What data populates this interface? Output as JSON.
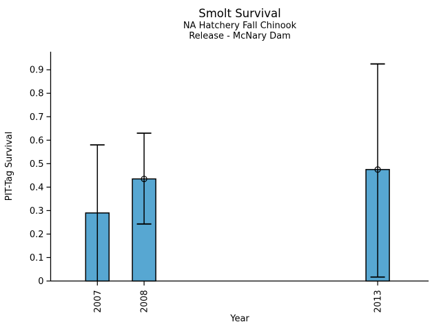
{
  "chart_data": {
    "type": "bar",
    "title": "Smolt Survival",
    "subtitle_line1": "NA Hatchery Fall Chinook",
    "subtitle_line2": "Release - McNary Dam",
    "xlabel": "Year",
    "ylabel": "PIT-Tag Survival",
    "categories": [
      "2007",
      "2008",
      "2013"
    ],
    "x": [
      2007,
      2008,
      2013
    ],
    "values": [
      0.29,
      0.435,
      0.475
    ],
    "error_low": [
      0.0,
      0.243,
      0.017
    ],
    "error_high": [
      0.58,
      0.63,
      0.925
    ],
    "point_markers": [
      false,
      true,
      true
    ],
    "yticks": [
      0,
      0.1,
      0.2,
      0.3,
      0.4,
      0.5,
      0.6,
      0.7,
      0.8,
      0.9
    ],
    "ylim": [
      0,
      0.977
    ],
    "xlim": [
      2006,
      2014.09
    ],
    "grid": false,
    "legend": "none",
    "colors": {
      "bar_fill": "#57A7D2",
      "bar_edge": "#000000",
      "axis": "#000000"
    }
  }
}
